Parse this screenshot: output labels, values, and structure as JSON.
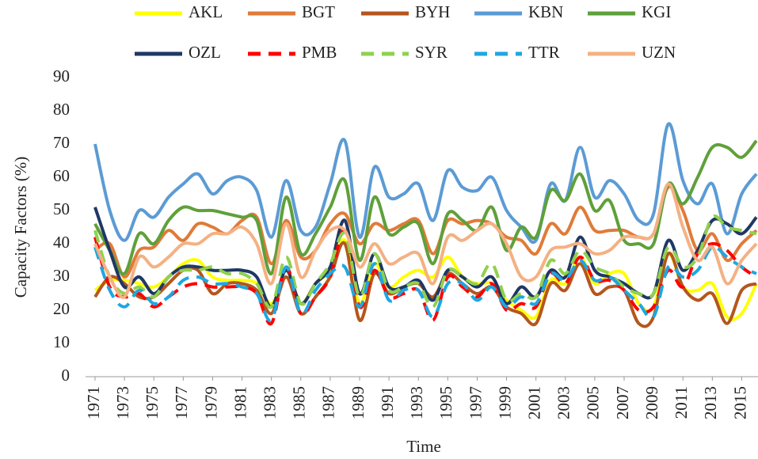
{
  "chart_data": {
    "type": "line",
    "y_label": "Capacity Factors (%)",
    "x_label": "Time",
    "x": [
      1971,
      1972,
      1973,
      1974,
      1975,
      1976,
      1977,
      1978,
      1979,
      1980,
      1981,
      1982,
      1983,
      1984,
      1985,
      1986,
      1987,
      1988,
      1989,
      1990,
      1991,
      1992,
      1993,
      1994,
      1995,
      1996,
      1997,
      1998,
      1999,
      2000,
      2001,
      2002,
      2003,
      2004,
      2005,
      2006,
      2007,
      2008,
      2009,
      2010,
      2011,
      2012,
      2013,
      2014,
      2015,
      2016
    ],
    "xlim": [
      1971,
      2016
    ],
    "xticks": [
      1971,
      1973,
      1975,
      1977,
      1979,
      1981,
      1983,
      1985,
      1987,
      1989,
      1991,
      1993,
      1995,
      1997,
      1999,
      2001,
      2003,
      2005,
      2007,
      2009,
      2011,
      2013,
      2015
    ],
    "ylim": [
      0,
      90
    ],
    "yticks": [
      0,
      10,
      20,
      30,
      40,
      50,
      60,
      70,
      80,
      90
    ],
    "grid": false,
    "legend": "top",
    "series": [
      {
        "name": "AKL",
        "color": "#ffff00",
        "dashed": false,
        "values": [
          26,
          29,
          29,
          28,
          27,
          30,
          34,
          35,
          30,
          29,
          29,
          28,
          22,
          30,
          22,
          28,
          32,
          41,
          22,
          34,
          27,
          30,
          32,
          30,
          36,
          30,
          28,
          28,
          23,
          20,
          18,
          29,
          28,
          36,
          28,
          31,
          31,
          22,
          21,
          37,
          27,
          26,
          28,
          18,
          19,
          28
        ]
      },
      {
        "name": "BGT",
        "color": "#e07b39",
        "dashed": false,
        "values": [
          38,
          40,
          30,
          38,
          39,
          44,
          41,
          46,
          45,
          43,
          47,
          48,
          34,
          47,
          36,
          38,
          46,
          49,
          40,
          46,
          44,
          46,
          47,
          37,
          47,
          46,
          47,
          46,
          42,
          41,
          37,
          46,
          43,
          51,
          44,
          44,
          44,
          42,
          43,
          57,
          50,
          38,
          43,
          35,
          40,
          44
        ]
      },
      {
        "name": "BYH",
        "color": "#b5561c",
        "dashed": false,
        "values": [
          24,
          30,
          28,
          24,
          24,
          28,
          32,
          32,
          25,
          28,
          28,
          26,
          19,
          30,
          19,
          24,
          30,
          40,
          17,
          31,
          25,
          27,
          28,
          24,
          31,
          28,
          25,
          27,
          21,
          19,
          16,
          28,
          26,
          34,
          25,
          27,
          26,
          16,
          18,
          37,
          27,
          23,
          25,
          16,
          26,
          28
        ]
      },
      {
        "name": "KBN",
        "color": "#5b9bd5",
        "dashed": false,
        "values": [
          70,
          50,
          41,
          50,
          48,
          54,
          58,
          61,
          55,
          59,
          60,
          56,
          42,
          59,
          44,
          45,
          58,
          71,
          42,
          63,
          54,
          55,
          58,
          47,
          62,
          57,
          56,
          60,
          50,
          45,
          41,
          58,
          53,
          69,
          54,
          59,
          55,
          47,
          49,
          76,
          59,
          52,
          58,
          43,
          55,
          61
        ]
      },
      {
        "name": "KGI",
        "color": "#5fa03a",
        "dashed": false,
        "values": [
          46,
          38,
          31,
          43,
          40,
          47,
          51,
          50,
          50,
          49,
          48,
          47,
          31,
          54,
          37,
          43,
          51,
          59,
          35,
          54,
          43,
          45,
          46,
          34,
          49,
          47,
          44,
          51,
          38,
          45,
          42,
          56,
          53,
          61,
          50,
          53,
          41,
          40,
          40,
          58,
          52,
          60,
          69,
          69,
          66,
          71
        ]
      },
      {
        "name": "OZL",
        "color": "#1f3864",
        "dashed": false,
        "values": [
          51,
          38,
          27,
          30,
          25,
          30,
          33,
          33,
          32,
          32,
          32,
          30,
          21,
          32,
          22,
          28,
          33,
          47,
          25,
          37,
          27,
          27,
          29,
          23,
          32,
          30,
          27,
          30,
          22,
          27,
          24,
          32,
          30,
          42,
          32,
          30,
          28,
          25,
          25,
          41,
          32,
          38,
          47,
          46,
          43,
          48
        ]
      },
      {
        "name": "PMB",
        "color": "#ff0000",
        "dashed": true,
        "values": [
          42,
          27,
          24,
          25,
          21,
          24,
          27,
          28,
          27,
          27,
          27,
          25,
          16,
          33,
          19,
          24,
          30,
          44,
          21,
          32,
          24,
          25,
          26,
          17,
          30,
          27,
          24,
          28,
          20,
          22,
          21,
          31,
          28,
          36,
          29,
          29,
          26,
          20,
          21,
          32,
          27,
          37,
          40,
          38,
          33,
          30
        ]
      },
      {
        "name": "SYR",
        "color": "#8fd14f",
        "dashed": true,
        "values": [
          44,
          30,
          25,
          27,
          24,
          30,
          32,
          32,
          33,
          31,
          31,
          28,
          21,
          36,
          22,
          28,
          34,
          43,
          24,
          37,
          26,
          27,
          28,
          21,
          32,
          30,
          28,
          34,
          23,
          25,
          24,
          35,
          31,
          38,
          33,
          31,
          27,
          25,
          25,
          39,
          33,
          36,
          48,
          45,
          44,
          43
        ]
      },
      {
        "name": "TTR",
        "color": "#1ea7e1",
        "dashed": true,
        "values": [
          39,
          26,
          21,
          26,
          22,
          24,
          29,
          30,
          28,
          28,
          27,
          25,
          17,
          33,
          19,
          26,
          31,
          33,
          21,
          34,
          23,
          26,
          26,
          18,
          28,
          28,
          23,
          27,
          21,
          24,
          22,
          31,
          29,
          35,
          29,
          30,
          26,
          22,
          18,
          33,
          30,
          32,
          39,
          36,
          33,
          31
        ]
      },
      {
        "name": "UZN",
        "color": "#f4b183",
        "dashed": false,
        "values": [
          40,
          30,
          24,
          36,
          33,
          36,
          40,
          40,
          43,
          43,
          45,
          40,
          28,
          46,
          30,
          38,
          44,
          44,
          33,
          40,
          34,
          36,
          37,
          28,
          42,
          41,
          44,
          46,
          40,
          30,
          30,
          38,
          39,
          40,
          37,
          38,
          42,
          42,
          43,
          58,
          45,
          35,
          39,
          28,
          35,
          40
        ]
      }
    ]
  }
}
